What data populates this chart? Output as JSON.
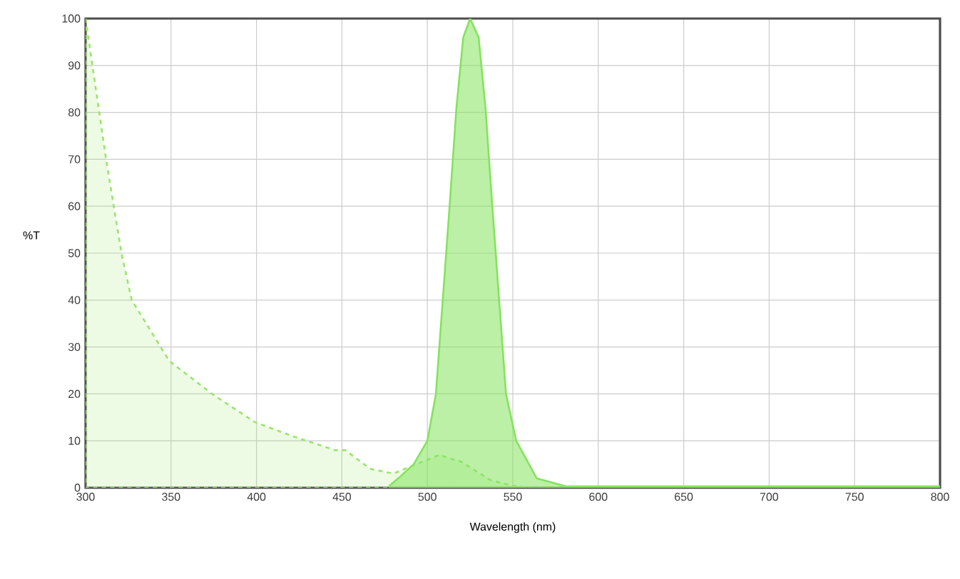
{
  "chart_data": {
    "type": "area",
    "xlabel": "Wavelength (nm)",
    "ylabel": "%T",
    "xlim": [
      300,
      800
    ],
    "ylim": [
      0,
      100
    ],
    "xticks": [
      300,
      350,
      400,
      450,
      500,
      550,
      600,
      650,
      700,
      750,
      800
    ],
    "yticks": [
      0,
      10,
      20,
      30,
      40,
      50,
      60,
      70,
      80,
      90,
      100
    ],
    "grid": true,
    "series": [
      {
        "color": "#9be56b",
        "line_style": "dashed",
        "x": [
          300,
          312,
          321,
          327,
          349,
          374,
          399,
          421,
          446,
          452,
          463,
          467,
          480,
          490,
          507,
          520,
          537,
          550,
          560,
          600,
          700,
          800
        ],
        "values": [
          100,
          70,
          50,
          40,
          27,
          20,
          14,
          11,
          8,
          8,
          5,
          4,
          3,
          4.5,
          7,
          5.5,
          1.6,
          0.4,
          0,
          0,
          0,
          0
        ]
      },
      {
        "color": "#84e35c",
        "line_style": "solid",
        "x": [
          478,
          483,
          492,
          500,
          505,
          509,
          513,
          517,
          521,
          525,
          530,
          534,
          538,
          542,
          546,
          552,
          564,
          581,
          600,
          700,
          800
        ],
        "values": [
          0.5,
          2,
          5,
          10,
          20,
          40,
          60,
          81,
          96,
          100,
          96,
          81,
          60,
          40,
          20,
          10,
          2,
          0.3,
          0.3,
          0.3,
          0.3
        ]
      }
    ]
  }
}
